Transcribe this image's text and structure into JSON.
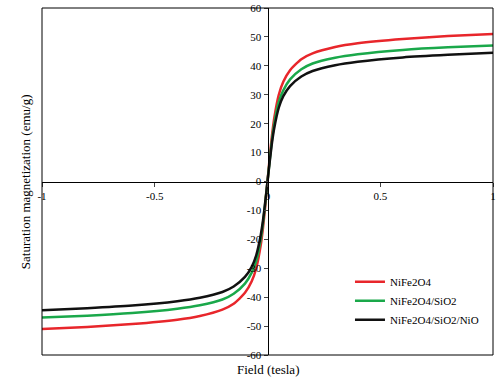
{
  "chart_data": {
    "type": "line",
    "x_label": "Field (tesla)",
    "y_label": "Saturation magnetization (emu/g)",
    "x": [
      -1,
      -0.8,
      -0.6,
      -0.4,
      -0.3,
      -0.2,
      -0.15,
      -0.1,
      -0.07,
      -0.05,
      -0.03,
      -0.02,
      -0.01,
      0,
      0.01,
      0.02,
      0.03,
      0.05,
      0.07,
      0.1,
      0.15,
      0.2,
      0.3,
      0.4,
      0.6,
      0.8,
      1
    ],
    "series": [
      {
        "name": "NiFe2O4",
        "color": "#e8262b",
        "values": [
          -51,
          -50.3,
          -49.3,
          -47.8,
          -46.5,
          -44.3,
          -42.3,
          -38.5,
          -34.5,
          -30,
          -22,
          -16,
          -8.5,
          0,
          8.5,
          16,
          22,
          30,
          34.5,
          38.5,
          42.3,
          44.3,
          46.5,
          47.8,
          49.3,
          50.3,
          51
        ]
      },
      {
        "name": "NiFe2O4/SiO2",
        "color": "#1aa84a",
        "values": [
          -47,
          -46.4,
          -45.5,
          -44,
          -42.8,
          -40.8,
          -38.8,
          -35.3,
          -31.5,
          -27.5,
          -20,
          -14.5,
          -7.5,
          0,
          7.5,
          14.5,
          20,
          27.5,
          31.5,
          35.3,
          38.8,
          40.8,
          42.8,
          44,
          45.5,
          46.4,
          47
        ]
      },
      {
        "name": "NiFe2O4/SiO2/NiO",
        "color": "#111111",
        "values": [
          -44.5,
          -43.8,
          -42.9,
          -41.4,
          -40.2,
          -38.2,
          -36.3,
          -33,
          -29.5,
          -25.5,
          -18.5,
          -13.5,
          -7,
          0,
          7,
          13.5,
          18.5,
          25.5,
          29.5,
          33,
          36.3,
          38.2,
          40.2,
          41.4,
          42.9,
          43.8,
          44.5
        ]
      }
    ],
    "xlim": [
      -1,
      1
    ],
    "xticks": [
      -1,
      -0.5,
      0,
      0.5,
      1
    ],
    "ylim": [
      -60,
      60
    ],
    "yticks": [
      -60,
      -50,
      -40,
      -30,
      -20,
      -10,
      0,
      10,
      20,
      30,
      40,
      50,
      60
    ],
    "grid": false,
    "legend": "lower right"
  }
}
